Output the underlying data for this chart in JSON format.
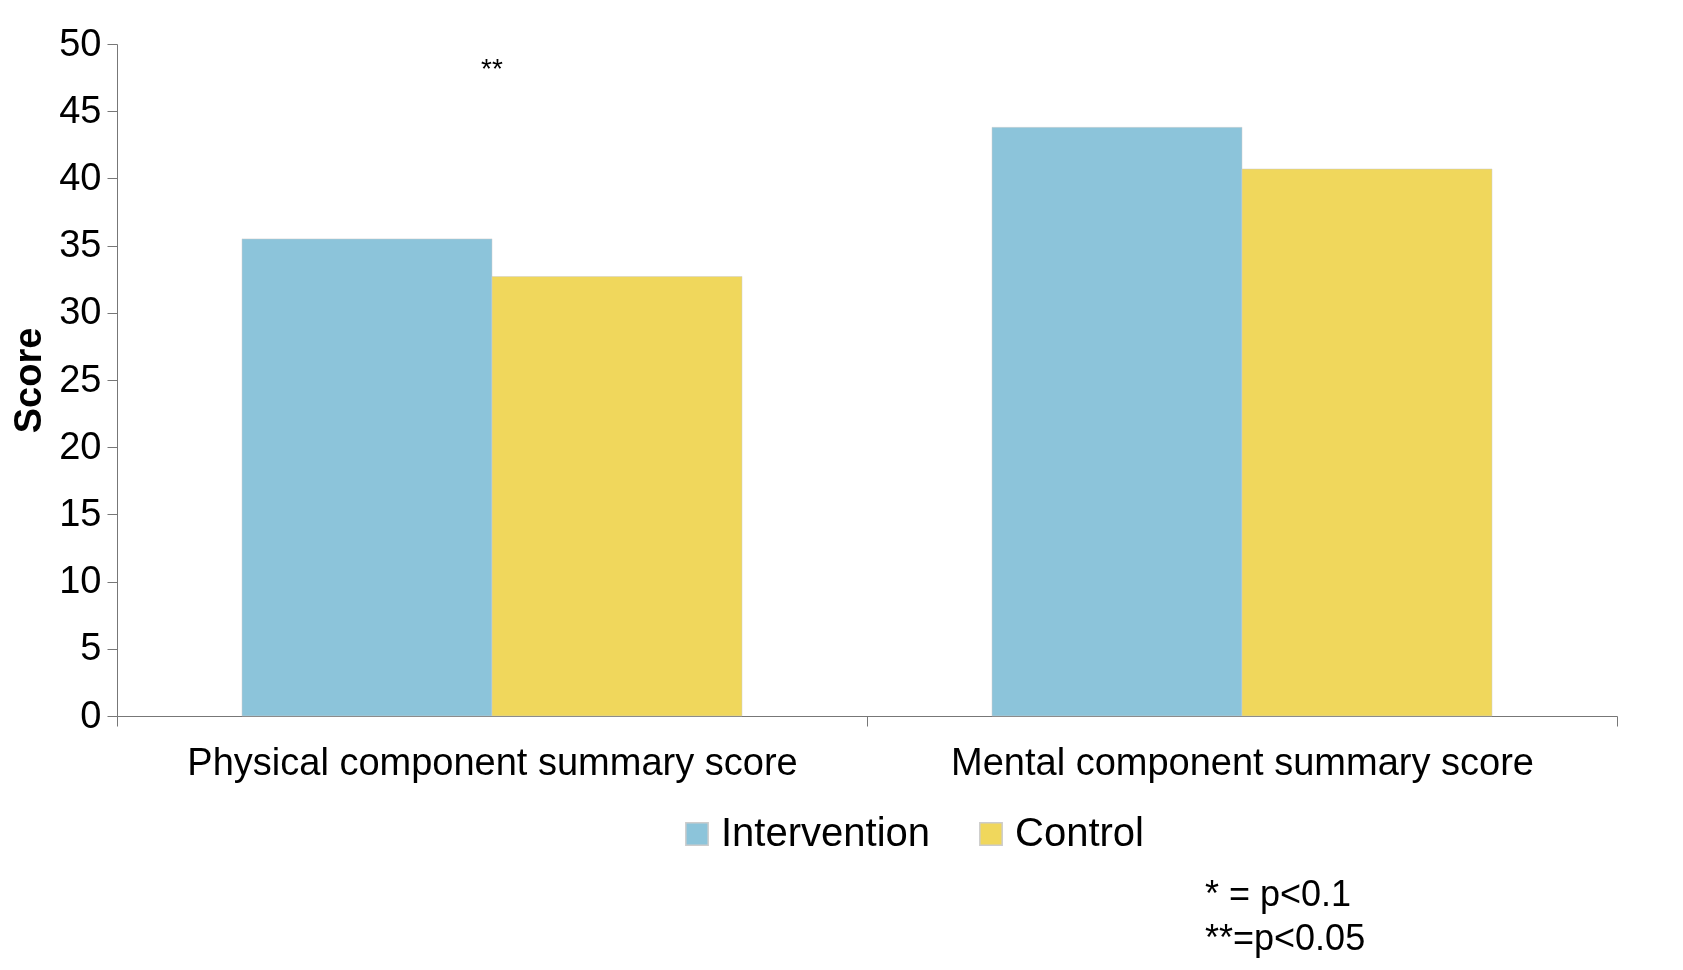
{
  "chart_data": {
    "type": "bar",
    "ylabel": "Score",
    "categories": [
      "Physical component summary score",
      "Mental component summary score"
    ],
    "series": [
      {
        "name": "Intervention",
        "color": "#8cc4da",
        "values": [
          35.5,
          43.8
        ]
      },
      {
        "name": "Control",
        "color": "#f0d75c",
        "values": [
          32.7,
          40.7
        ]
      }
    ],
    "ylim": [
      0,
      50
    ],
    "yticks": [
      0,
      5,
      10,
      15,
      20,
      25,
      30,
      35,
      40,
      45,
      50
    ],
    "grid": false,
    "legend": "bottom",
    "annotations": [
      "**",
      "* = p<0.1",
      "**=p<0.05"
    ]
  }
}
